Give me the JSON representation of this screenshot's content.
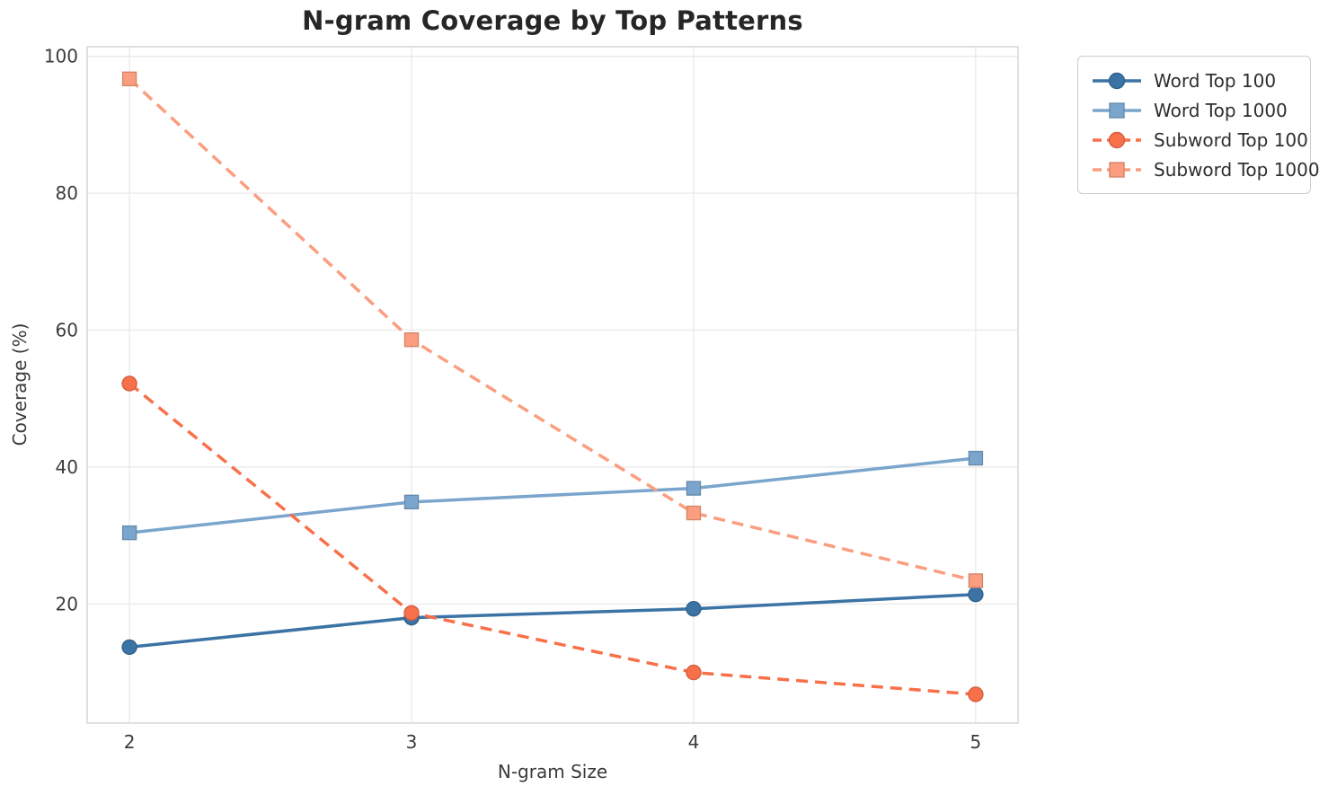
{
  "figure": {
    "background": "#ffffff",
    "grid_color": "#e9e9e9",
    "spine_color": "#d5d5d5",
    "tick_label_color": "#3c3c3c",
    "title_color": "#262626"
  },
  "chart_data": {
    "type": "line",
    "title": "N-gram Coverage by Top Patterns",
    "xlabel": "N-gram Size",
    "ylabel": "Coverage (%)",
    "x": [
      2,
      3,
      4,
      5
    ],
    "xticks": [
      2,
      3,
      4,
      5
    ],
    "yticks": [
      20,
      40,
      60,
      80,
      100
    ],
    "xlim": [
      1.85,
      5.15
    ],
    "ylim": [
      2.6,
      101.4
    ],
    "grid": true,
    "legend_position": "upper-right-outside",
    "series": [
      {
        "name": "Word Top 100",
        "values": [
          13.7,
          18.0,
          19.3,
          21.4
        ],
        "color": "#3b73a5",
        "line_style": "solid",
        "marker": "circle"
      },
      {
        "name": "Word Top 1000",
        "values": [
          30.4,
          34.9,
          36.9,
          41.3
        ],
        "color": "#7aa5cc",
        "line_style": "solid",
        "marker": "square"
      },
      {
        "name": "Subword Top 100",
        "values": [
          52.2,
          18.7,
          10.0,
          6.8
        ],
        "color": "#f8704a",
        "line_style": "dashed",
        "marker": "circle"
      },
      {
        "name": "Subword Top 1000",
        "values": [
          96.7,
          58.6,
          33.3,
          23.4
        ],
        "color": "#fb9e7f",
        "line_style": "dashed",
        "marker": "square"
      }
    ]
  }
}
